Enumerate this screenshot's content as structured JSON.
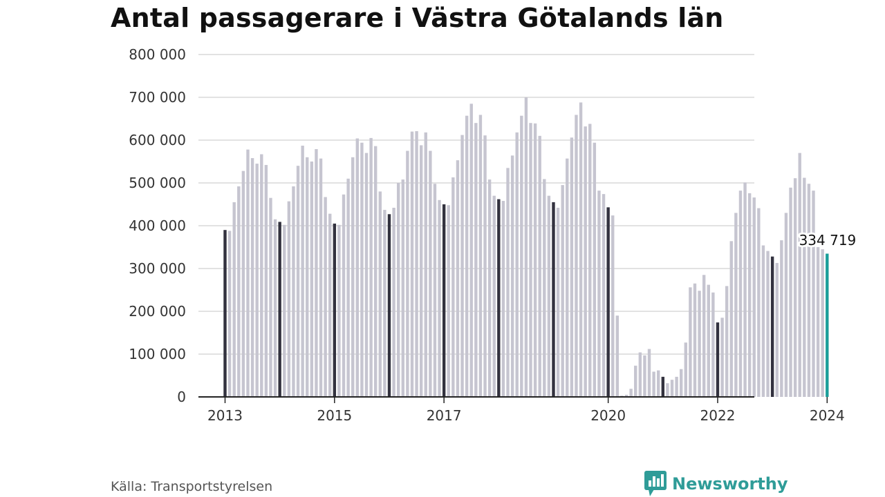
{
  "title": "Antal passagerare i Västra Götalands län",
  "source": "Källa: Transportstyrelsen",
  "brand": {
    "name": "Newsworthy",
    "icon": "newsworthy-logo-icon"
  },
  "colors": {
    "bar": "#c6c5d0",
    "january": "#33323f",
    "latest": "#1a9e9a",
    "brand": "#2f9c98",
    "grid": "#d9d9d9",
    "axis": "#222222"
  },
  "chart_data": {
    "type": "bar",
    "title": "Antal passagerare i Västra Götalands län",
    "ylim": [
      0,
      800000
    ],
    "yticks": [
      0,
      100000,
      200000,
      300000,
      400000,
      500000,
      600000,
      700000,
      800000
    ],
    "ytick_labels": [
      "0",
      "100 000",
      "200 000",
      "300 000",
      "400 000",
      "500 000",
      "600 000",
      "700 000",
      "800 000"
    ],
    "xtick_labels": [
      {
        "label": "2013",
        "month": "2013-01"
      },
      {
        "label": "2015",
        "month": "2015-01"
      },
      {
        "label": "2017",
        "month": "2017-01"
      },
      {
        "label": "2020",
        "month": "2020-01"
      },
      {
        "label": "2022",
        "month": "2022-01"
      },
      {
        "label": "2024",
        "month": "2024-01"
      }
    ],
    "grid": true,
    "highlight_january": true,
    "latest_label": {
      "month": "2024-01",
      "text": "334 719"
    },
    "series": [
      {
        "year": 2013,
        "values": [
          390000,
          388000,
          455000,
          492000,
          528000,
          578000,
          558000,
          545000,
          567000,
          542000,
          465000,
          415000
        ]
      },
      {
        "year": 2014,
        "values": [
          409000,
          402000,
          457000,
          492000,
          540000,
          587000,
          560000,
          550000,
          579000,
          557000,
          467000,
          428000
        ]
      },
      {
        "year": 2015,
        "values": [
          405000,
          402000,
          473000,
          510000,
          560000,
          604000,
          594000,
          570000,
          605000,
          586000,
          480000,
          437000
        ]
      },
      {
        "year": 2016,
        "values": [
          427000,
          442000,
          500000,
          508000,
          575000,
          620000,
          621000,
          588000,
          618000,
          575000,
          498000,
          460000
        ]
      },
      {
        "year": 2017,
        "values": [
          450000,
          448000,
          513000,
          553000,
          612000,
          657000,
          685000,
          640000,
          659000,
          611000,
          508000,
          470000
        ]
      },
      {
        "year": 2018,
        "values": [
          462000,
          458000,
          535000,
          564000,
          618000,
          657000,
          700000,
          640000,
          639000,
          610000,
          509000,
          470000
        ]
      },
      {
        "year": 2019,
        "values": [
          455000,
          442000,
          495000,
          557000,
          606000,
          659000,
          688000,
          632000,
          638000,
          594000,
          482000,
          474000
        ]
      },
      {
        "year": 2020,
        "values": [
          443000,
          424000,
          190000,
          3000,
          5000,
          19000,
          73000,
          104000,
          97000,
          112000,
          59000,
          62000
        ]
      },
      {
        "year": 2021,
        "values": [
          47000,
          32000,
          40000,
          47000,
          65000,
          127000,
          256000,
          265000,
          248000,
          285000,
          262000,
          244000
        ]
      },
      {
        "year": 2022,
        "values": [
          174000,
          185000,
          259000,
          364000,
          430000,
          482000,
          501000,
          476000,
          466000,
          441000,
          354000,
          341000
        ]
      },
      {
        "year": 2023,
        "values": [
          328000,
          313000,
          366000,
          430000,
          489000,
          511000,
          570000,
          512000,
          498000,
          482000,
          350000,
          345000
        ]
      },
      {
        "year": 2024,
        "values": [
          334719
        ]
      }
    ]
  }
}
